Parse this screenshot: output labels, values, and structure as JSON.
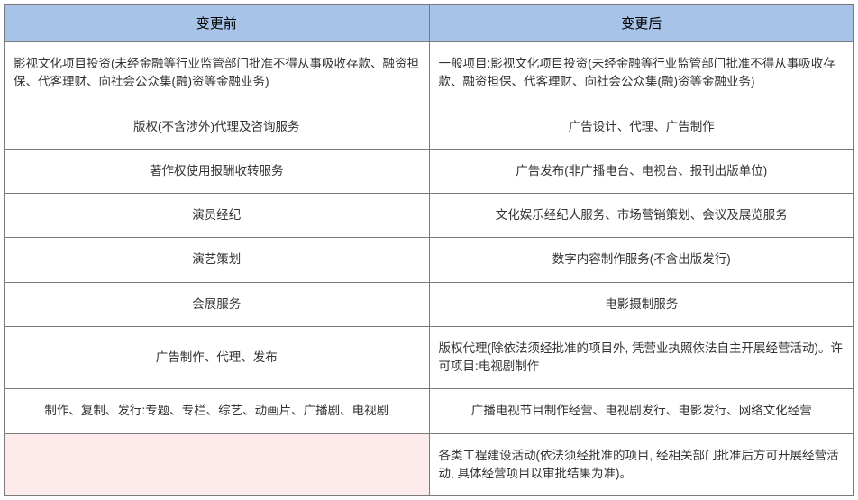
{
  "table": {
    "headers": {
      "before": "变更前",
      "after": "变更后"
    },
    "rows": [
      {
        "left": "影视文化项目投资(未经金融等行业监管部门批准不得从事吸收存款、融资担保、代客理财、向社会公众集(融)资等金融业务)",
        "right": "一般项目:影视文化项目投资(未经金融等行业监管部门批准不得从事吸收存款、融资担保、代客理财、向社会公众集(融)资等金融业务)",
        "leftMultiline": true,
        "rightMultiline": true
      },
      {
        "left": "版权(不含涉外)代理及咨询服务",
        "right": "广告设计、代理、广告制作",
        "leftMultiline": false,
        "rightMultiline": false
      },
      {
        "left": "著作权使用报酬收转服务",
        "right": "广告发布(非广播电台、电视台、报刊出版单位)",
        "leftMultiline": false,
        "rightMultiline": false
      },
      {
        "left": "演员经纪",
        "right": "文化娱乐经纪人服务、市场营销策划、会议及展览服务",
        "leftMultiline": false,
        "rightMultiline": false
      },
      {
        "left": "演艺策划",
        "right": "数字内容制作服务(不含出版发行)",
        "leftMultiline": false,
        "rightMultiline": false
      },
      {
        "left": "会展服务",
        "right": "电影摄制服务",
        "leftMultiline": false,
        "rightMultiline": false
      },
      {
        "left": "广告制作、代理、发布",
        "right": "版权代理(除依法须经批准的项目外, 凭营业执照依法自主开展经营活动)。许可项目:电视剧制作",
        "leftMultiline": false,
        "rightMultiline": true
      },
      {
        "left": "制作、复制、发行:专题、专栏、综艺、动画片、广播剧、电视剧",
        "right": "广播电视节目制作经营、电视剧发行、电影发行、网络文化经营",
        "leftMultiline": false,
        "rightMultiline": false
      },
      {
        "left": "",
        "right": "各类工程建设活动(依法须经批准的项目, 经相关部门批准后方可开展经营活动, 具体经营项目以审批结果为准)。",
        "leftMultiline": false,
        "rightMultiline": true,
        "leftHighlight": true
      }
    ],
    "colors": {
      "headerBg": "#a7c4e8",
      "border": "#7a7a7a",
      "highlightBg": "#fdebec",
      "textColor": "#333333"
    }
  }
}
